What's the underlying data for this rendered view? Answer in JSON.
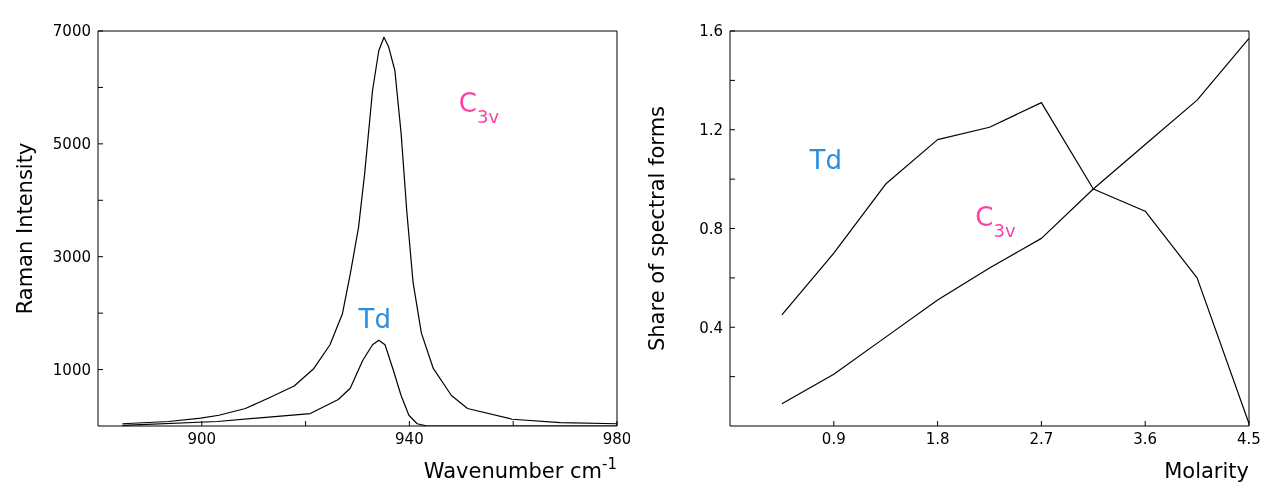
{
  "chart_data": [
    {
      "type": "line",
      "xlabel": "Wavenumber cm$^{-1}$",
      "ylabel": "Raman Intensity",
      "xlim": [
        880,
        980
      ],
      "ylim": [
        0,
        7000
      ],
      "xticks": [
        900,
        {
          "value": 920,
          "label": null
        },
        940,
        {
          "value": 960,
          "label": null
        },
        980
      ],
      "yticks": [
        1000,
        {
          "value": 2000,
          "label": null
        },
        3000,
        {
          "value": 4000,
          "label": null
        },
        5000,
        {
          "value": 6000,
          "label": null
        },
        7000
      ],
      "series": [
        {
          "name": "C$_{3v}$",
          "color": "#000000",
          "x": [
            884.7,
            893.6,
            899.8,
            903.3,
            908.4,
            913,
            917.8,
            921.6,
            924.7,
            927.1,
            928.6,
            930.2,
            931.4,
            932.9,
            934.1,
            935.1,
            936,
            937.2,
            938.4,
            939.5,
            940.7,
            942.3,
            944.6,
            948.1,
            951.2,
            959.8,
            969.1,
            980
          ],
          "values": [
            40,
            80,
            140,
            190,
            310,
            500,
            710,
            1020,
            1440,
            1990,
            2690,
            3520,
            4490,
            5950,
            6650,
            6890,
            6720,
            6300,
            5190,
            3800,
            2550,
            1650,
            1020,
            540,
            310,
            120,
            60,
            40
          ]
        },
        {
          "name": "Td",
          "color": "#000000",
          "x": [
            884.7,
            903,
            914.6,
            920.9,
            926.3,
            928.6,
            931,
            932.9,
            934.1,
            935.3,
            936.8,
            938.4,
            939.9,
            941.5,
            943.4,
            980
          ],
          "values": [
            10,
            80,
            170,
            220,
            470,
            670,
            1160,
            1440,
            1520,
            1440,
            1020,
            540,
            190,
            40,
            0,
            0
          ]
        }
      ]
    },
    {
      "type": "line",
      "xlabel": "Molarity",
      "ylabel": "Share of spectral forms",
      "xlim": [
        0,
        4.5
      ],
      "ylim": [
        0,
        1.6
      ],
      "xticks": [
        0.9,
        1.8,
        2.7,
        3.6,
        4.5
      ],
      "yticks": [
        {
          "value": 0.2,
          "label": null
        },
        0.4,
        {
          "value": 0.6,
          "label": null
        },
        0.8,
        {
          "value": 1.0,
          "label": null
        },
        1.2,
        {
          "value": 1.4,
          "label": null
        },
        1.6
      ],
      "series": [
        {
          "name": "Td",
          "color": "#000000",
          "x": [
            0.45,
            0.9,
            1.35,
            1.8,
            2.25,
            2.7,
            3.15,
            3.6,
            4.05,
            4.5
          ],
          "values": [
            0.45,
            0.7,
            0.98,
            1.16,
            1.21,
            1.31,
            0.96,
            0.87,
            0.6,
            0.01
          ]
        },
        {
          "name": "C$_{3v}$",
          "color": "#000000",
          "x": [
            0.45,
            0.9,
            1.35,
            1.8,
            2.25,
            2.7,
            3.15,
            3.6,
            4.05,
            4.5
          ],
          "values": [
            0.09,
            0.21,
            0.36,
            0.51,
            0.64,
            0.76,
            0.96,
            1.14,
            1.32,
            1.57
          ]
        }
      ]
    }
  ]
}
